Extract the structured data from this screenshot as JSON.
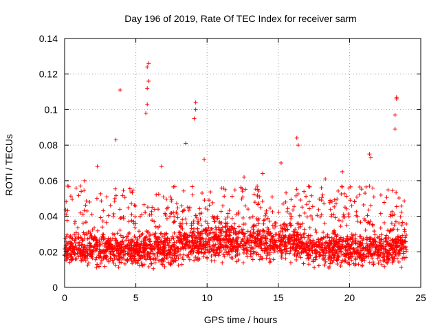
{
  "chart_data": {
    "type": "scatter",
    "title": "Day 196 of 2019, Rate Of TEC Index for receiver sarm",
    "xlabel": "GPS time / hours",
    "ylabel": "ROTI / TECUs",
    "xlim": [
      0,
      25
    ],
    "ylim": [
      0,
      0.14
    ],
    "xticks": [
      0,
      5,
      10,
      15,
      20,
      25
    ],
    "xtick_labels": [
      "0",
      "5",
      "10",
      "15",
      "20",
      "25"
    ],
    "yticks": [
      0,
      0.02,
      0.04,
      0.06,
      0.08,
      0.1,
      0.12,
      0.14
    ],
    "ytick_labels": [
      "0",
      "0.02",
      "0.04",
      "0.06",
      "0.08",
      "0.1",
      "0.12",
      "0.14"
    ],
    "grid": true,
    "marker": "+",
    "color": "#ff0000",
    "series": [
      {
        "name": "ROTI",
        "x_range": [
          0,
          24
        ],
        "baseline_band": [
          0.008,
          0.035
        ],
        "spikes": [
          {
            "x": 0.2,
            "y": 0.057
          },
          {
            "x": 1.4,
            "y": 0.06
          },
          {
            "x": 2.3,
            "y": 0.068
          },
          {
            "x": 3.6,
            "y": 0.083
          },
          {
            "x": 3.9,
            "y": 0.111
          },
          {
            "x": 5.7,
            "y": 0.098
          },
          {
            "x": 5.8,
            "y": 0.103
          },
          {
            "x": 5.8,
            "y": 0.112
          },
          {
            "x": 5.9,
            "y": 0.116
          },
          {
            "x": 5.8,
            "y": 0.124
          },
          {
            "x": 5.9,
            "y": 0.126
          },
          {
            "x": 6.8,
            "y": 0.068
          },
          {
            "x": 8.5,
            "y": 0.081
          },
          {
            "x": 9.1,
            "y": 0.095
          },
          {
            "x": 9.2,
            "y": 0.1
          },
          {
            "x": 9.2,
            "y": 0.104
          },
          {
            "x": 9.8,
            "y": 0.072
          },
          {
            "x": 12.6,
            "y": 0.062
          },
          {
            "x": 13.9,
            "y": 0.064
          },
          {
            "x": 15.2,
            "y": 0.07
          },
          {
            "x": 16.3,
            "y": 0.084
          },
          {
            "x": 16.4,
            "y": 0.08
          },
          {
            "x": 18.3,
            "y": 0.061
          },
          {
            "x": 19.5,
            "y": 0.065
          },
          {
            "x": 21.4,
            "y": 0.075
          },
          {
            "x": 21.5,
            "y": 0.073
          },
          {
            "x": 23.2,
            "y": 0.089
          },
          {
            "x": 23.2,
            "y": 0.097
          },
          {
            "x": 23.3,
            "y": 0.106
          },
          {
            "x": 23.3,
            "y": 0.107
          }
        ]
      }
    ]
  }
}
